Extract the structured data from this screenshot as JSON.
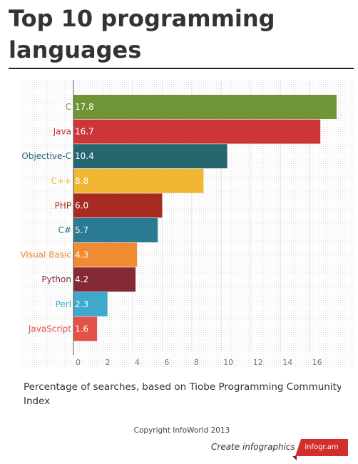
{
  "title": "Top 10 programming languages",
  "caption": [
    "Percentage of searches, based on Tiobe Programming Community",
    "Index"
  ],
  "copyright": "Copyright InfoWorld 2013",
  "footer": {
    "create_label": "Create infographics",
    "badge_label": "infogr.am"
  },
  "chart_data": {
    "type": "bar",
    "orientation": "horizontal",
    "categories": [
      "C",
      "Java",
      "Objective-C",
      "C++",
      "PHP",
      "C#",
      "Visual Basic",
      "Python",
      "Perl",
      "JavaScript"
    ],
    "values": [
      17.8,
      16.7,
      10.4,
      8.8,
      6.0,
      5.7,
      4.3,
      4.2,
      2.3,
      1.6
    ],
    "value_labels": [
      "17.8",
      "16.7",
      "10.4",
      "8.8",
      "6.0",
      "5.7",
      "4.3",
      "4.2",
      "2.3",
      "1.6"
    ],
    "colors": [
      "#6f9536",
      "#cc3636",
      "#25666f",
      "#f1b634",
      "#a82b22",
      "#2a7a93",
      "#f08b33",
      "#832a35",
      "#3fa8cd",
      "#e35248"
    ],
    "x_ticks": [
      0,
      2,
      4,
      6,
      8,
      10,
      12,
      14,
      16
    ],
    "xlim": [
      0,
      17.8
    ],
    "grid": true,
    "legend": "none"
  }
}
